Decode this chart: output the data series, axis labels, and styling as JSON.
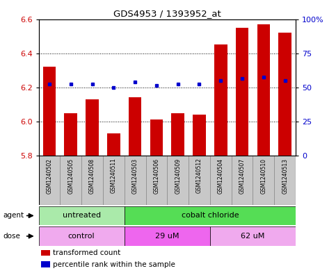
{
  "title": "GDS4953 / 1393952_at",
  "samples": [
    "GSM1240502",
    "GSM1240505",
    "GSM1240508",
    "GSM1240511",
    "GSM1240503",
    "GSM1240506",
    "GSM1240509",
    "GSM1240512",
    "GSM1240504",
    "GSM1240507",
    "GSM1240510",
    "GSM1240513"
  ],
  "transformed_count": [
    6.32,
    6.05,
    6.13,
    5.93,
    6.14,
    6.01,
    6.05,
    6.04,
    6.45,
    6.55,
    6.57,
    6.52
  ],
  "percentile_rank": [
    6.22,
    6.22,
    6.22,
    6.2,
    6.23,
    6.21,
    6.22,
    6.22,
    6.24,
    6.25,
    6.26,
    6.24
  ],
  "ylim": [
    5.8,
    6.6
  ],
  "yticks_left": [
    5.8,
    6.0,
    6.2,
    6.4,
    6.6
  ],
  "yticks_right": [
    0,
    25,
    50,
    75,
    100
  ],
  "bar_color": "#cc0000",
  "dot_color": "#0000cc",
  "bar_width": 0.6,
  "agent_groups": [
    {
      "label": "untreated",
      "start": 0,
      "end": 4,
      "color": "#aaeaaa"
    },
    {
      "label": "cobalt chloride",
      "start": 4,
      "end": 12,
      "color": "#55dd55"
    }
  ],
  "dose_groups": [
    {
      "label": "control",
      "start": 0,
      "end": 4,
      "color": "#f0aaee"
    },
    {
      "label": "29 uM",
      "start": 4,
      "end": 8,
      "color": "#ee66ee"
    },
    {
      "label": "62 uM",
      "start": 8,
      "end": 12,
      "color": "#f0aaee"
    }
  ],
  "legend_items": [
    {
      "color": "#cc0000",
      "label": "transformed count"
    },
    {
      "color": "#0000cc",
      "label": "percentile rank within the sample"
    }
  ],
  "sample_box_color": "#c8c8c8",
  "sample_box_edge": "#888888"
}
